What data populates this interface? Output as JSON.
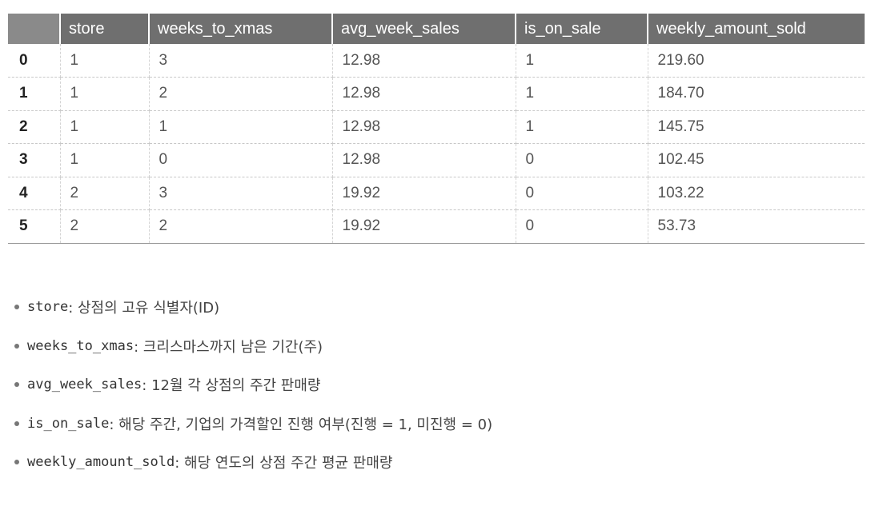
{
  "table": {
    "columns": [
      "",
      "store",
      "weeks_to_xmas",
      "avg_week_sales",
      "is_on_sale",
      "weekly_amount_sold"
    ],
    "rows": [
      [
        "0",
        "1",
        "3",
        "12.98",
        "1",
        "219.60"
      ],
      [
        "1",
        "1",
        "2",
        "12.98",
        "1",
        "184.70"
      ],
      [
        "2",
        "1",
        "1",
        "12.98",
        "1",
        "145.75"
      ],
      [
        "3",
        "1",
        "0",
        "12.98",
        "0",
        "102.45"
      ],
      [
        "4",
        "2",
        "3",
        "19.92",
        "0",
        "103.22"
      ],
      [
        "5",
        "2",
        "2",
        "19.92",
        "0",
        "53.73"
      ]
    ]
  },
  "notes": [
    {
      "code": "store",
      "text": ": 상점의 고유 식별자(ID)"
    },
    {
      "code": "weeks_to_xmas",
      "text": ": 크리스마스까지 남은 기간(주)"
    },
    {
      "code": "avg_week_sales",
      "text": ": 12월 각 상점의 주간 판매량"
    },
    {
      "code": "is_on_sale",
      "text": ": 해당 주간, 기업의 가격할인 진행 여부(진행 = 1, 미진행 = 0)"
    },
    {
      "code": "weekly_amount_sold",
      "text": ": 해당 연도의 상점 주간 평균 판매량"
    }
  ]
}
